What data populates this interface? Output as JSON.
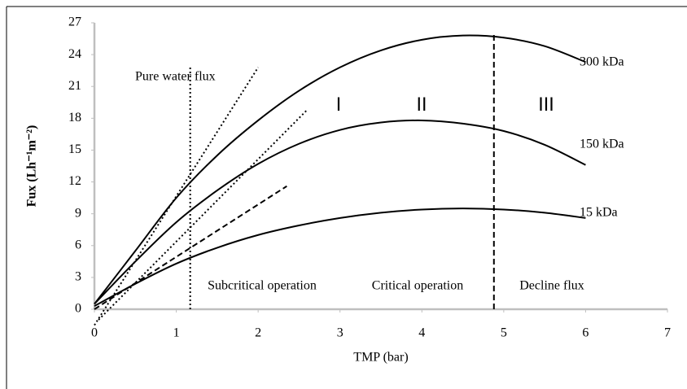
{
  "chart_data": {
    "type": "line",
    "x_label": "TMP (bar)",
    "y_label": "Fux (Lh⁻¹m⁻²)",
    "x": [
      0,
      0.5,
      1,
      1.5,
      2,
      2.5,
      3,
      3.5,
      4,
      4.5,
      5,
      5.5,
      6
    ],
    "series": [
      {
        "name": "300 kDa",
        "color": "#000000",
        "values": [
          0.5,
          5.5,
          10.5,
          14.5,
          17.8,
          20.6,
          22.8,
          24.4,
          25.4,
          25.8,
          25.6,
          24.8,
          23.3
        ]
      },
      {
        "name": "150 kDa",
        "color": "#000000",
        "values": [
          0.5,
          4.5,
          8.2,
          11.2,
          13.7,
          15.6,
          16.9,
          17.6,
          17.8,
          17.5,
          16.8,
          15.5,
          13.6
        ]
      },
      {
        "name": "15 kDa",
        "color": "#000000",
        "values": [
          0.3,
          2.4,
          4.3,
          5.8,
          7.0,
          7.9,
          8.6,
          9.1,
          9.4,
          9.5,
          9.4,
          9.1,
          8.6
        ]
      }
    ],
    "reference_lines": [
      {
        "style": "dotted",
        "x": [
          0,
          2
        ],
        "y": [
          -1.5,
          22.8
        ]
      },
      {
        "style": "dotted",
        "x": [
          0.05,
          2.6
        ],
        "y": [
          -1.0,
          18.8
        ]
      },
      {
        "style": "dashed",
        "x": [
          0,
          2.35
        ],
        "y": [
          0,
          11.6
        ]
      },
      {
        "style": "dotted",
        "x": [
          1.17,
          1.17
        ],
        "y": [
          0,
          23
        ]
      },
      {
        "style": "dashed",
        "x": [
          4.88,
          4.88
        ],
        "y": [
          0,
          26
        ]
      }
    ],
    "annotations": [
      "Pure water flux",
      "I",
      "II",
      "III",
      "Subcritical operation",
      "Critical operation",
      "Decline flux"
    ],
    "xlim": [
      0,
      7
    ],
    "xticks": [
      0,
      1,
      2,
      3,
      4,
      5,
      6,
      7
    ],
    "ylim": [
      0,
      27
    ],
    "yticks": [
      0,
      3,
      6,
      9,
      12,
      15,
      18,
      21,
      24,
      27
    ]
  }
}
